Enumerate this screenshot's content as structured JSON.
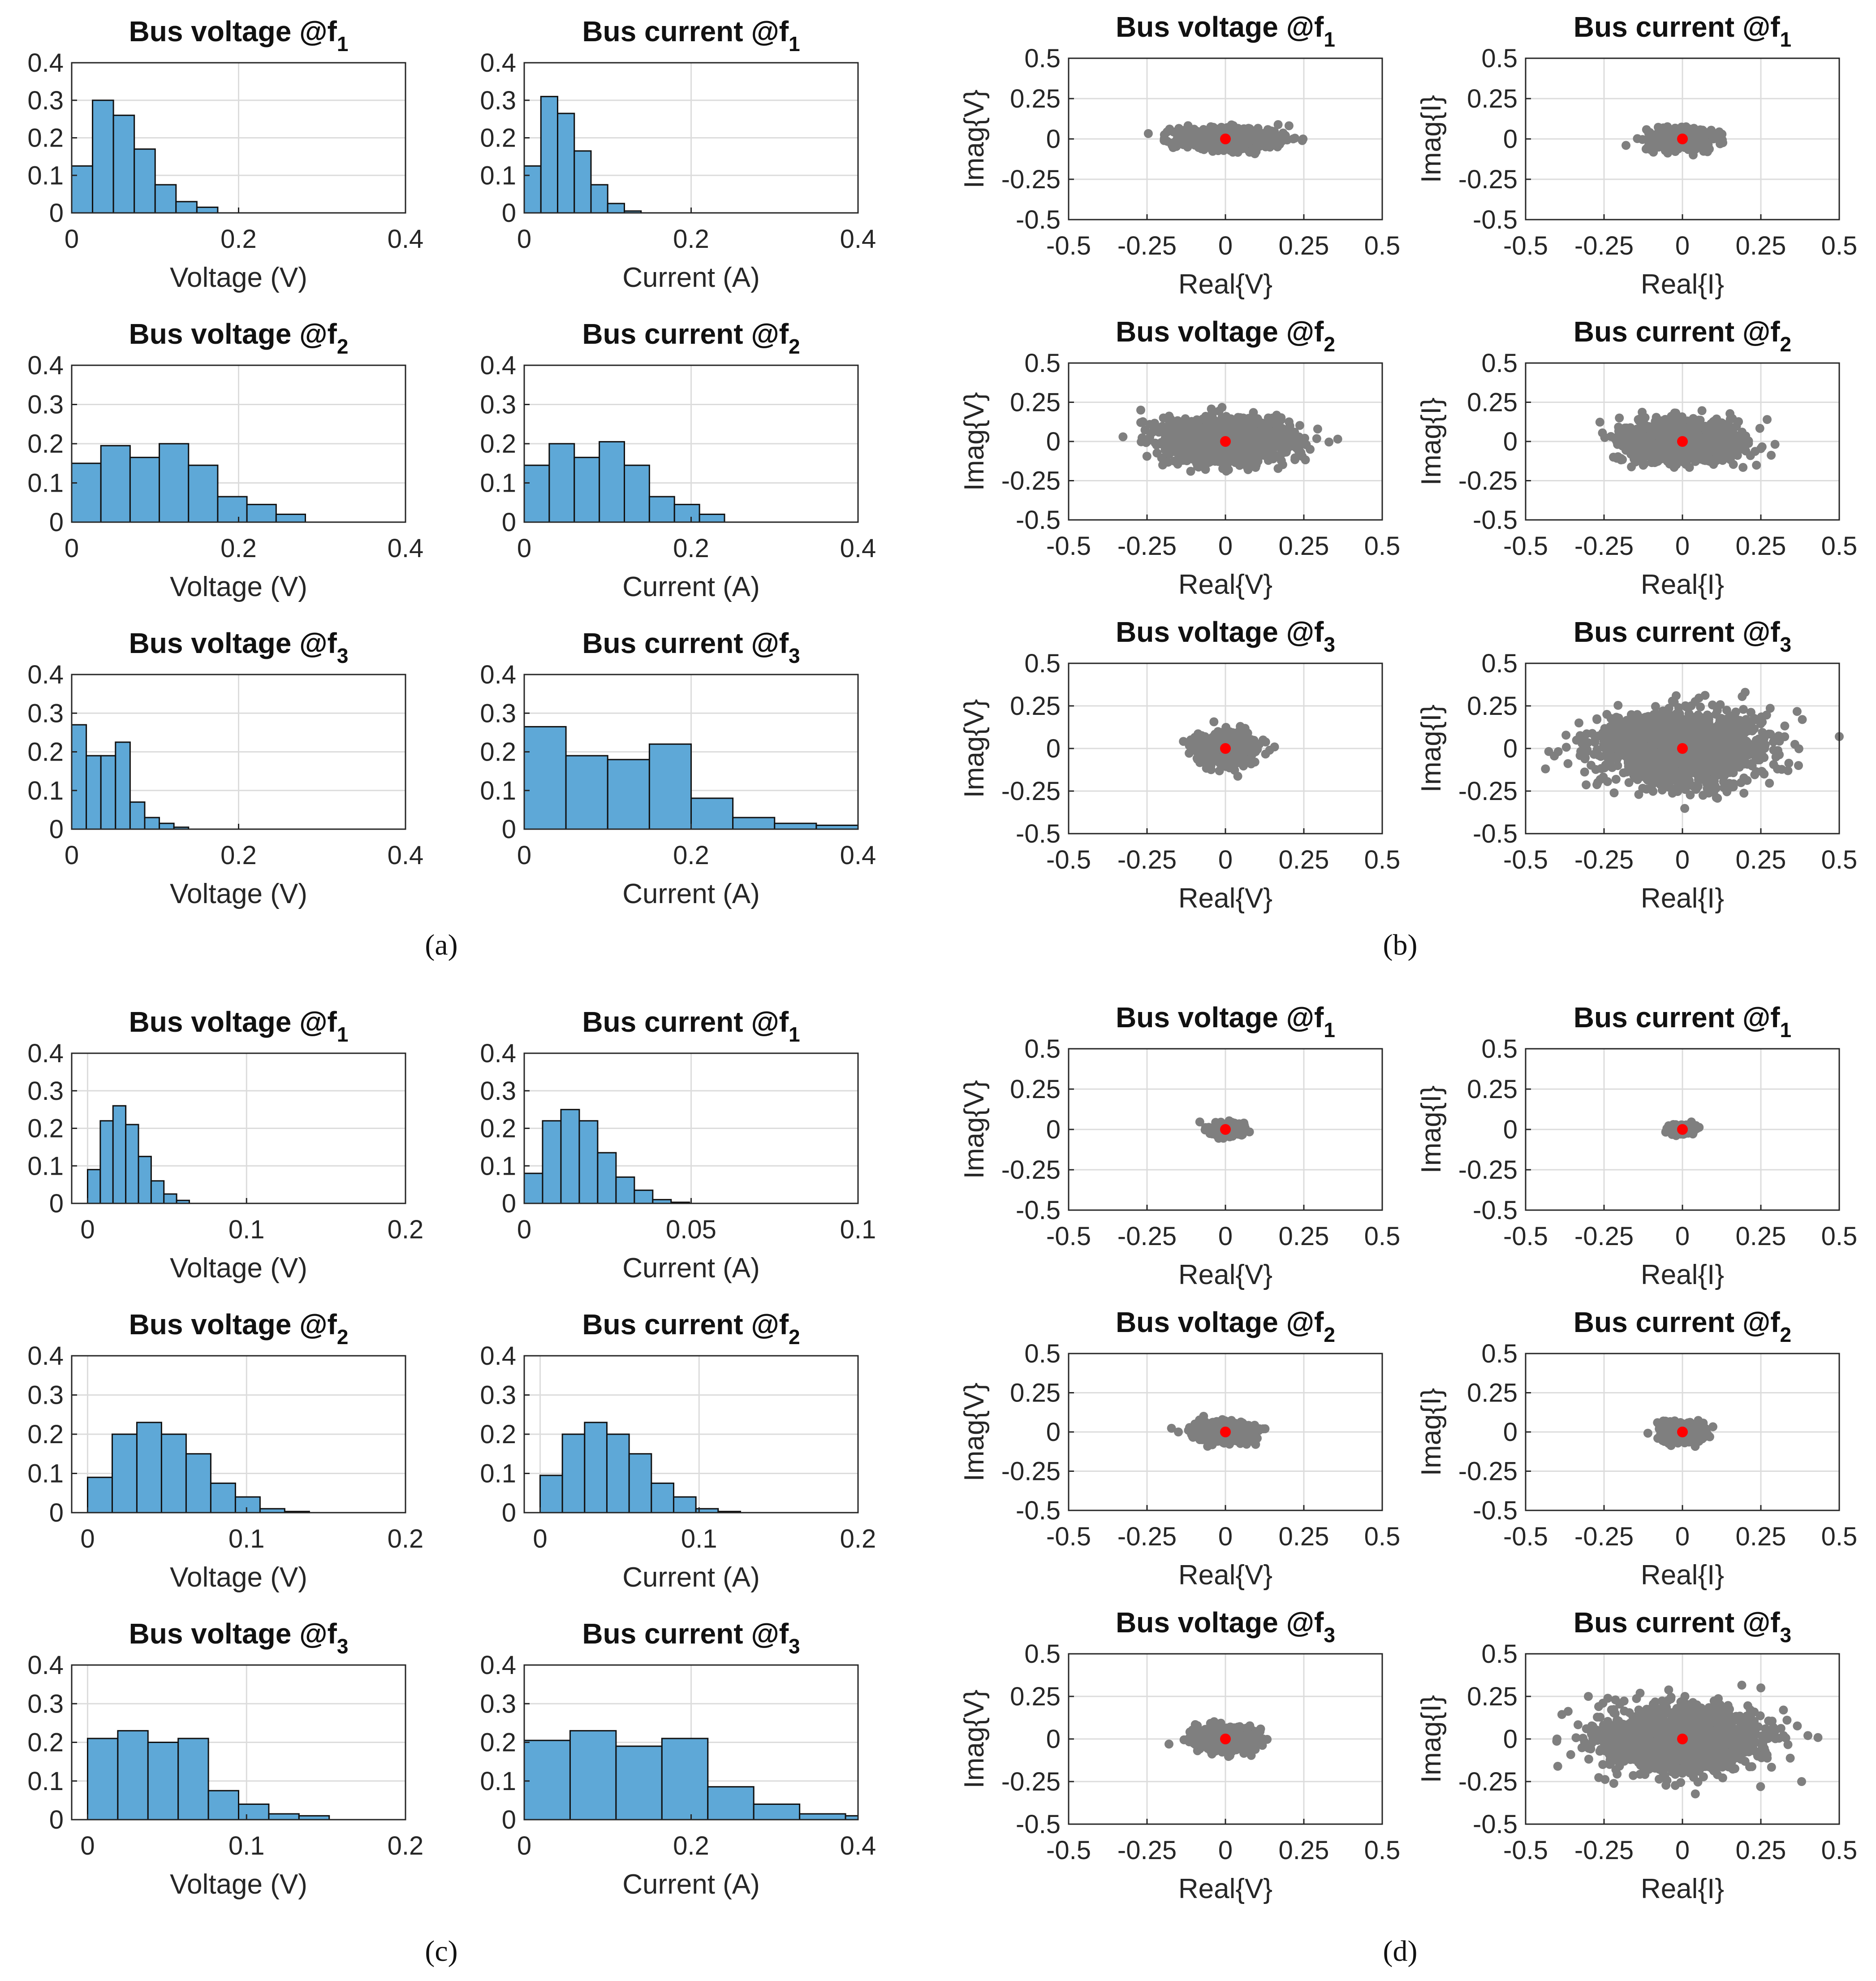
{
  "figure": {
    "panel_labels": [
      "(a)",
      "(b)",
      "(c)",
      "(d)"
    ],
    "colors": {
      "bar": "#5ea8d7",
      "bar_edge": "#111111",
      "scatter": "#7f7f7f",
      "centroid": "#ff0000",
      "grid": "#dcdcdc"
    }
  },
  "chart_data": [
    {
      "id": "a-v-f1",
      "type": "bar",
      "panel": "a",
      "title": "Bus voltage @f",
      "subscript": "1",
      "xlabel": "Voltage (V)",
      "ylabel": "",
      "xlim": [
        0,
        0.4
      ],
      "ylim": [
        0,
        0.4
      ],
      "xticks": [
        "0",
        "0.2",
        "0.4"
      ],
      "yticks": [
        "0",
        "0.1",
        "0.2",
        "0.3",
        "0.4"
      ],
      "bin_start": 0,
      "bin_width": 0.025,
      "values": [
        0.125,
        0.3,
        0.26,
        0.17,
        0.075,
        0.03,
        0.015
      ]
    },
    {
      "id": "a-i-f1",
      "type": "bar",
      "panel": "a",
      "title": "Bus current @f",
      "subscript": "1",
      "xlabel": "Current (A)",
      "ylabel": "",
      "xlim": [
        0,
        0.4
      ],
      "ylim": [
        0,
        0.4
      ],
      "xticks": [
        "0",
        "0.2",
        "0.4"
      ],
      "yticks": [
        "0",
        "0.1",
        "0.2",
        "0.3",
        "0.4"
      ],
      "bin_start": 0,
      "bin_width": 0.02,
      "values": [
        0.125,
        0.31,
        0.265,
        0.165,
        0.075,
        0.025,
        0.005
      ]
    },
    {
      "id": "a-v-f2",
      "type": "bar",
      "panel": "a",
      "title": "Bus voltage @f",
      "subscript": "2",
      "xlabel": "Voltage (V)",
      "ylabel": "",
      "xlim": [
        0,
        0.4
      ],
      "ylim": [
        0,
        0.4
      ],
      "xticks": [
        "0",
        "0.2",
        "0.4"
      ],
      "yticks": [
        "0",
        "0.1",
        "0.2",
        "0.3",
        "0.4"
      ],
      "bin_start": 0,
      "bin_width": 0.035,
      "values": [
        0.15,
        0.195,
        0.165,
        0.2,
        0.145,
        0.065,
        0.045,
        0.02
      ]
    },
    {
      "id": "a-i-f2",
      "type": "bar",
      "panel": "a",
      "title": "Bus current @f",
      "subscript": "2",
      "xlabel": "Current (A)",
      "ylabel": "",
      "xlim": [
        0,
        0.4
      ],
      "ylim": [
        0,
        0.4
      ],
      "xticks": [
        "0",
        "0.2",
        "0.4"
      ],
      "yticks": [
        "0",
        "0.1",
        "0.2",
        "0.3",
        "0.4"
      ],
      "bin_start": 0,
      "bin_width": 0.03,
      "values": [
        0.145,
        0.2,
        0.165,
        0.205,
        0.145,
        0.065,
        0.045,
        0.02
      ]
    },
    {
      "id": "a-v-f3",
      "type": "bar",
      "panel": "a",
      "title": "Bus voltage @f",
      "subscript": "3",
      "xlabel": "Voltage (V)",
      "ylabel": "",
      "xlim": [
        0,
        0.4
      ],
      "ylim": [
        0,
        0.4
      ],
      "xticks": [
        "0",
        "0.2",
        "0.4"
      ],
      "yticks": [
        "0",
        "0.1",
        "0.2",
        "0.3",
        "0.4"
      ],
      "bin_start": 0,
      "bin_width": 0.0175,
      "values": [
        0.27,
        0.19,
        0.19,
        0.225,
        0.07,
        0.03,
        0.015,
        0.005
      ]
    },
    {
      "id": "a-i-f3",
      "type": "bar",
      "panel": "a",
      "title": "Bus current @f",
      "subscript": "3",
      "xlabel": "Current (A)",
      "ylabel": "",
      "xlim": [
        0,
        0.4
      ],
      "ylim": [
        0,
        0.4
      ],
      "xticks": [
        "0",
        "0.2",
        "0.4"
      ],
      "yticks": [
        "0",
        "0.1",
        "0.2",
        "0.3",
        "0.4"
      ],
      "bin_start": 0,
      "bin_width": 0.05,
      "values": [
        0.265,
        0.19,
        0.18,
        0.22,
        0.08,
        0.03,
        0.015,
        0.01
      ]
    },
    {
      "id": "b-v-f1",
      "type": "scatter",
      "panel": "b",
      "title": "Bus voltage @f",
      "subscript": "1",
      "xlabel": "Real{V}",
      "ylabel": "Imag{V}",
      "xlim": [
        -0.5,
        0.5
      ],
      "ylim": [
        -0.5,
        0.5
      ],
      "xticks": [
        "-0.5",
        "-0.25",
        "0",
        "0.25",
        "0.5"
      ],
      "yticks": [
        "-0.5",
        "-0.25",
        "0",
        "0.25",
        "0.5"
      ],
      "cloud": {
        "sx": 0.075,
        "sy": 0.032,
        "n": 650,
        "outliers": [
          [
            0.245,
            -0.01
          ],
          [
            -0.17,
            -0.04
          ]
        ]
      },
      "center": [
        0,
        0
      ]
    },
    {
      "id": "b-i-f1",
      "type": "scatter",
      "panel": "b",
      "title": "Bus current @f",
      "subscript": "1",
      "xlabel": "Real{I}",
      "ylabel": "Imag{I}",
      "xlim": [
        -0.5,
        0.5
      ],
      "ylim": [
        -0.5,
        0.5
      ],
      "xticks": [
        "-0.5",
        "-0.25",
        "0",
        "0.25",
        "0.5"
      ],
      "yticks": [
        "-0.5",
        "-0.25",
        "0",
        "0.25",
        "0.5"
      ],
      "cloud": {
        "sx": 0.05,
        "sy": 0.03,
        "n": 500,
        "outliers": [
          [
            -0.18,
            -0.04
          ],
          [
            0.12,
            -0.03
          ]
        ]
      },
      "center": [
        0,
        0
      ]
    },
    {
      "id": "b-v-f2",
      "type": "scatter",
      "panel": "b",
      "title": "Bus voltage @f",
      "subscript": "2",
      "xlabel": "Real{V}",
      "ylabel": "Imag{V}",
      "xlim": [
        -0.5,
        0.5
      ],
      "ylim": [
        -0.5,
        0.5
      ],
      "xticks": [
        "-0.5",
        "-0.25",
        "0",
        "0.25",
        "0.5"
      ],
      "yticks": [
        "-0.5",
        "-0.25",
        "0",
        "0.25",
        "0.5"
      ],
      "cloud": {
        "sx": 0.095,
        "sy": 0.065,
        "n": 1600,
        "outliers": [
          [
            -0.27,
            0.2
          ],
          [
            0.27,
            -0.05
          ],
          [
            -0.2,
            -0.15
          ]
        ]
      },
      "center": [
        0,
        0
      ]
    },
    {
      "id": "b-i-f2",
      "type": "scatter",
      "panel": "b",
      "title": "Bus current @f",
      "subscript": "2",
      "xlabel": "Real{I}",
      "ylabel": "Imag{I}",
      "xlim": [
        -0.5,
        0.5
      ],
      "ylim": [
        -0.5,
        0.5
      ],
      "xticks": [
        "-0.5",
        "-0.25",
        "0",
        "0.25",
        "0.5"
      ],
      "yticks": [
        "-0.5",
        "-0.25",
        "0",
        "0.25",
        "0.5"
      ],
      "cloud": {
        "sx": 0.085,
        "sy": 0.06,
        "n": 1400,
        "outliers": [
          [
            0.27,
            0.14
          ],
          [
            -0.22,
            -0.1
          ]
        ]
      },
      "center": [
        0,
        0
      ]
    },
    {
      "id": "b-v-f3",
      "type": "scatter",
      "panel": "b",
      "title": "Bus voltage @f",
      "subscript": "3",
      "xlabel": "Real{V}",
      "ylabel": "Imag{V}",
      "xlim": [
        -0.5,
        0.5
      ],
      "ylim": [
        -0.5,
        0.5
      ],
      "xticks": [
        "-0.5",
        "-0.25",
        "0",
        "0.25",
        "0.5"
      ],
      "yticks": [
        "-0.5",
        "-0.25",
        "0",
        "0.25",
        "0.5"
      ],
      "cloud": {
        "sx": 0.045,
        "sy": 0.045,
        "n": 550,
        "outliers": [
          [
            0.12,
            0.05
          ],
          [
            -0.1,
            0.0
          ]
        ]
      },
      "center": [
        0,
        0
      ]
    },
    {
      "id": "b-i-f3",
      "type": "scatter",
      "panel": "b",
      "title": "Bus current @f",
      "subscript": "3",
      "xlabel": "Real{I}",
      "ylabel": "Imag{I}",
      "xlim": [
        -0.5,
        0.5
      ],
      "ylim": [
        -0.5,
        0.5
      ],
      "xticks": [
        "-0.5",
        "-0.25",
        "0",
        "0.25",
        "0.5"
      ],
      "yticks": [
        "-0.5",
        "-0.25",
        "0",
        "0.25",
        "0.5"
      ],
      "cloud": {
        "sx": 0.12,
        "sy": 0.1,
        "n": 1800,
        "outliers": [
          [
            0.5,
            0.07
          ],
          [
            -0.33,
            0.15
          ],
          [
            0.37,
            -0.1
          ],
          [
            0.2,
            0.33
          ],
          [
            -0.27,
            -0.2
          ]
        ]
      },
      "center": [
        0,
        0
      ]
    },
    {
      "id": "c-v-f1",
      "type": "bar",
      "panel": "c",
      "title": "Bus voltage @f",
      "subscript": "1",
      "xlabel": "Voltage (V)",
      "ylabel": "",
      "xlim": [
        -0.01,
        0.2
      ],
      "ylim": [
        0,
        0.4
      ],
      "xticks": [
        "0",
        "0.1",
        "0.2"
      ],
      "xtick_values": [
        0,
        0.1,
        0.2
      ],
      "yticks": [
        "0",
        "0.1",
        "0.2",
        "0.3",
        "0.4"
      ],
      "bin_start": 0,
      "bin_width": 0.008,
      "values": [
        0.09,
        0.22,
        0.26,
        0.21,
        0.125,
        0.06,
        0.025,
        0.008
      ]
    },
    {
      "id": "c-i-f1",
      "type": "bar",
      "panel": "c",
      "title": "Bus current @f",
      "subscript": "1",
      "xlabel": "Current (A)",
      "ylabel": "",
      "xlim": [
        0,
        0.1
      ],
      "ylim": [
        0,
        0.4
      ],
      "xticks": [
        "0",
        "0.05",
        "0.1"
      ],
      "xtick_values": [
        0,
        0.05,
        0.1
      ],
      "yticks": [
        "0",
        "0.1",
        "0.2",
        "0.3",
        "0.4"
      ],
      "bin_start": 0,
      "bin_width": 0.0055,
      "values": [
        0.08,
        0.22,
        0.25,
        0.22,
        0.135,
        0.07,
        0.035,
        0.01,
        0.003
      ]
    },
    {
      "id": "c-v-f2",
      "type": "bar",
      "panel": "c",
      "title": "Bus voltage @f",
      "subscript": "2",
      "xlabel": "Voltage (V)",
      "ylabel": "",
      "xlim": [
        -0.01,
        0.2
      ],
      "ylim": [
        0,
        0.4
      ],
      "xticks": [
        "0",
        "0.1",
        "0.2"
      ],
      "xtick_values": [
        0,
        0.1,
        0.2
      ],
      "yticks": [
        "0",
        "0.1",
        "0.2",
        "0.3",
        "0.4"
      ],
      "bin_start": 0,
      "bin_width": 0.0155,
      "values": [
        0.09,
        0.2,
        0.23,
        0.2,
        0.15,
        0.075,
        0.04,
        0.01,
        0.003
      ]
    },
    {
      "id": "c-i-f2",
      "type": "bar",
      "panel": "c",
      "title": "Bus current @f",
      "subscript": "2",
      "xlabel": "Current (A)",
      "ylabel": "",
      "xlim": [
        -0.01,
        0.2
      ],
      "ylim": [
        0,
        0.4
      ],
      "xticks": [
        "0",
        "0.1",
        "0.2"
      ],
      "xtick_values": [
        0,
        0.1,
        0.2
      ],
      "yticks": [
        "0",
        "0.1",
        "0.2",
        "0.3",
        "0.4"
      ],
      "bin_start": 0,
      "bin_width": 0.014,
      "values": [
        0.095,
        0.2,
        0.23,
        0.2,
        0.15,
        0.075,
        0.04,
        0.01,
        0.003
      ]
    },
    {
      "id": "c-v-f3",
      "type": "bar",
      "panel": "c",
      "title": "Bus voltage @f",
      "subscript": "3",
      "xlabel": "Voltage (V)",
      "ylabel": "",
      "xlim": [
        -0.01,
        0.2
      ],
      "ylim": [
        0,
        0.4
      ],
      "xticks": [
        "0",
        "0.1",
        "0.2"
      ],
      "xtick_values": [
        0,
        0.1,
        0.2
      ],
      "yticks": [
        "0",
        "0.1",
        "0.2",
        "0.3",
        "0.4"
      ],
      "bin_start": 0,
      "bin_width": 0.019,
      "values": [
        0.21,
        0.23,
        0.2,
        0.21,
        0.075,
        0.04,
        0.015,
        0.01
      ]
    },
    {
      "id": "c-i-f3",
      "type": "bar",
      "panel": "c",
      "title": "Bus current @f",
      "subscript": "3",
      "xlabel": "Current (A)",
      "ylabel": "",
      "xlim": [
        0,
        0.4
      ],
      "ylim": [
        0,
        0.4
      ],
      "xticks": [
        "0",
        "0.2",
        "0.4"
      ],
      "xtick_values": [
        0,
        0.2,
        0.4
      ],
      "yticks": [
        "0",
        "0.1",
        "0.2",
        "0.3",
        "0.4"
      ],
      "bin_start": 0,
      "bin_width": 0.055,
      "values": [
        0.205,
        0.23,
        0.19,
        0.21,
        0.085,
        0.04,
        0.015,
        0.01
      ]
    },
    {
      "id": "d-v-f1",
      "type": "scatter",
      "panel": "d",
      "title": "Bus voltage @f",
      "subscript": "1",
      "xlabel": "Real{V}",
      "ylabel": "Imag{V}",
      "xlim": [
        -0.5,
        0.5
      ],
      "ylim": [
        -0.5,
        0.5
      ],
      "xticks": [
        "-0.5",
        "-0.25",
        "0",
        "0.25",
        "0.5"
      ],
      "yticks": [
        "-0.5",
        "-0.25",
        "0",
        "0.25",
        "0.5"
      ],
      "cloud": {
        "sx": 0.025,
        "sy": 0.018,
        "n": 350,
        "outliers": []
      },
      "center": [
        0,
        0
      ]
    },
    {
      "id": "d-i-f1",
      "type": "scatter",
      "panel": "d",
      "title": "Bus current @f",
      "subscript": "1",
      "xlabel": "Real{I}",
      "ylabel": "Imag{I}",
      "xlim": [
        -0.5,
        0.5
      ],
      "ylim": [
        -0.5,
        0.5
      ],
      "xticks": [
        "-0.5",
        "-0.25",
        "0",
        "0.25",
        "0.5"
      ],
      "yticks": [
        "-0.5",
        "-0.25",
        "0",
        "0.25",
        "0.5"
      ],
      "cloud": {
        "sx": 0.02,
        "sy": 0.014,
        "n": 280,
        "outliers": []
      },
      "center": [
        0,
        0
      ]
    },
    {
      "id": "d-v-f2",
      "type": "scatter",
      "panel": "d",
      "title": "Bus voltage @f",
      "subscript": "2",
      "xlabel": "Real{V}",
      "ylabel": "Imag{V}",
      "xlim": [
        -0.5,
        0.5
      ],
      "ylim": [
        -0.5,
        0.5
      ],
      "xticks": [
        "-0.5",
        "-0.25",
        "0",
        "0.25",
        "0.5"
      ],
      "yticks": [
        "-0.5",
        "-0.25",
        "0",
        "0.25",
        "0.5"
      ],
      "cloud": {
        "sx": 0.045,
        "sy": 0.03,
        "n": 600,
        "outliers": [
          [
            -0.15,
            0.0
          ],
          [
            0.12,
            0.02
          ]
        ]
      },
      "center": [
        0,
        0
      ]
    },
    {
      "id": "d-i-f2",
      "type": "scatter",
      "panel": "d",
      "title": "Bus current @f",
      "subscript": "2",
      "xlabel": "Real{I}",
      "ylabel": "Imag{I}",
      "xlim": [
        -0.5,
        0.5
      ],
      "ylim": [
        -0.5,
        0.5
      ],
      "xticks": [
        "-0.5",
        "-0.25",
        "0",
        "0.25",
        "0.5"
      ],
      "yticks": [
        "-0.5",
        "-0.25",
        "0",
        "0.25",
        "0.5"
      ],
      "cloud": {
        "sx": 0.035,
        "sy": 0.028,
        "n": 450,
        "outliers": []
      },
      "center": [
        0,
        0
      ]
    },
    {
      "id": "d-v-f3",
      "type": "scatter",
      "panel": "d",
      "title": "Bus voltage @f",
      "subscript": "3",
      "xlabel": "Real{V}",
      "ylabel": "Imag{V}",
      "xlim": [
        -0.5,
        0.5
      ],
      "ylim": [
        -0.5,
        0.5
      ],
      "xticks": [
        "-0.5",
        "-0.25",
        "0",
        "0.25",
        "0.5"
      ],
      "yticks": [
        "-0.5",
        "-0.25",
        "0",
        "0.25",
        "0.5"
      ],
      "cloud": {
        "sx": 0.045,
        "sy": 0.035,
        "n": 600,
        "outliers": [
          [
            -0.18,
            -0.03
          ],
          [
            0.12,
            0.0
          ]
        ]
      },
      "center": [
        0,
        0
      ]
    },
    {
      "id": "d-i-f3",
      "type": "scatter",
      "panel": "d",
      "title": "Bus current @f",
      "subscript": "3",
      "xlabel": "Real{I}",
      "ylabel": "Imag{I}",
      "xlim": [
        -0.5,
        0.5
      ],
      "ylim": [
        -0.5,
        0.5
      ],
      "xticks": [
        "-0.5",
        "-0.25",
        "0",
        "0.25",
        "0.5"
      ],
      "yticks": [
        "-0.5",
        "-0.25",
        "0",
        "0.25",
        "0.5"
      ],
      "cloud": {
        "sx": 0.12,
        "sy": 0.09,
        "n": 1700,
        "outliers": [
          [
            -0.4,
            0.0
          ],
          [
            0.4,
            0.02
          ],
          [
            0.38,
            -0.25
          ],
          [
            -0.3,
            0.25
          ],
          [
            0.25,
            0.3
          ]
        ]
      },
      "center": [
        0,
        0
      ]
    }
  ]
}
